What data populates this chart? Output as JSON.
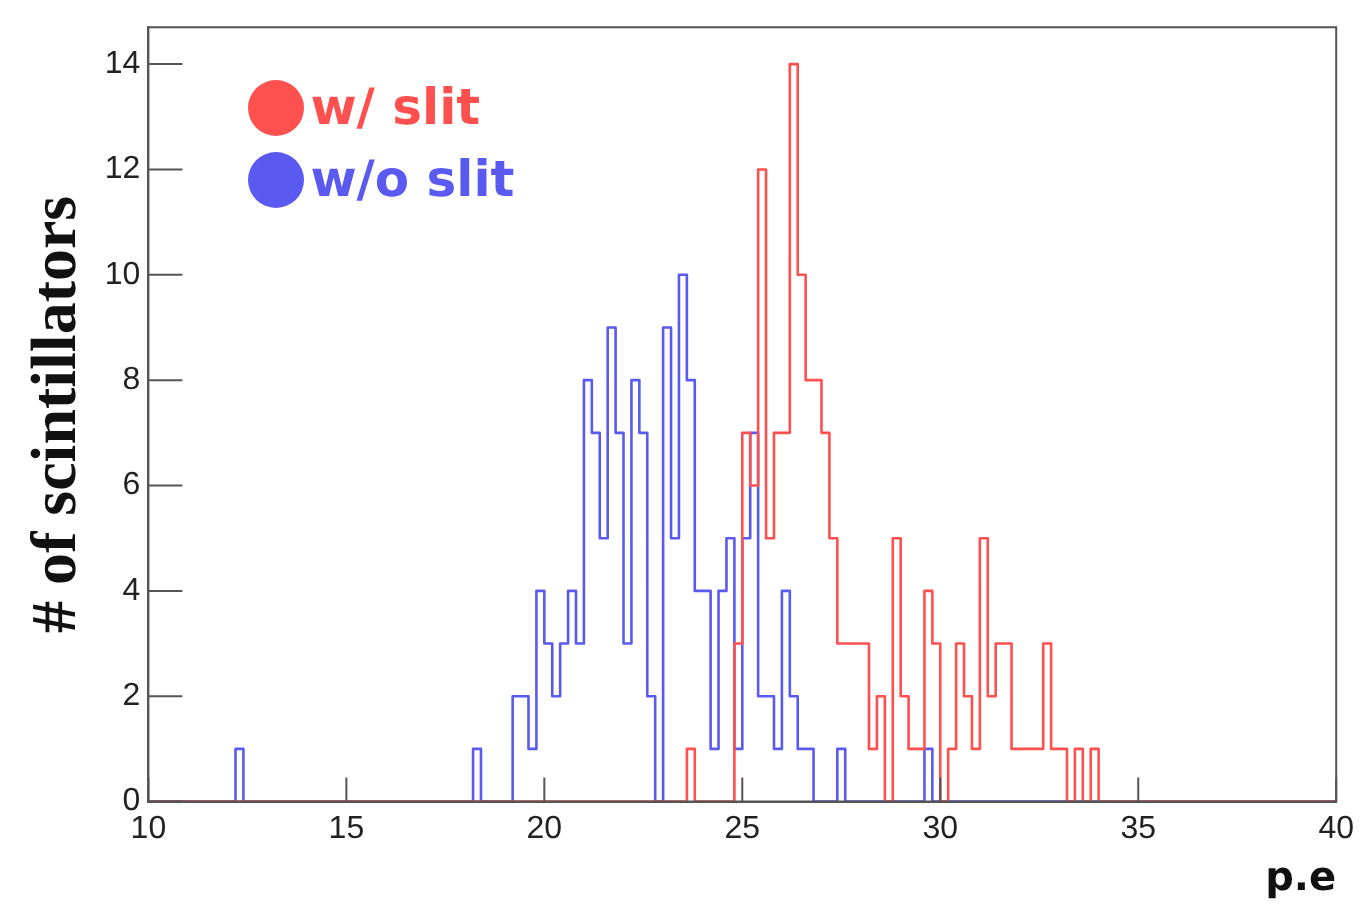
{
  "chart_data": {
    "type": "histogram",
    "xlabel": "p.e",
    "ylabel": "# of scintillators",
    "bins": [
      10,
      10.2,
      10.4,
      10.6,
      10.8,
      11,
      11.2,
      11.4,
      11.6,
      11.8,
      12,
      12.2,
      12.4,
      12.6,
      12.8,
      13,
      13.2,
      13.4,
      13.6,
      13.8,
      14,
      14.2,
      14.4,
      14.6,
      14.8,
      15,
      15.2,
      15.4,
      15.6,
      15.8,
      16,
      16.2,
      16.4,
      16.6,
      16.8,
      17,
      17.2,
      17.4,
      17.6,
      17.8,
      18,
      18.2,
      18.4,
      18.6,
      18.8,
      19,
      19.2,
      19.4,
      19.6,
      19.8,
      20,
      20.2,
      20.4,
      20.6,
      20.8,
      21,
      21.2,
      21.4,
      21.6,
      21.8,
      22,
      22.2,
      22.4,
      22.6,
      22.8,
      23,
      23.2,
      23.4,
      23.6,
      23.8,
      24,
      24.2,
      24.4,
      24.6,
      24.8,
      25,
      25.2,
      25.4,
      25.6,
      25.8,
      26,
      26.2,
      26.4,
      26.6,
      26.8,
      27,
      27.2,
      27.4,
      27.6,
      27.8,
      28,
      28.2,
      28.4,
      28.6,
      28.8,
      29,
      29.2,
      29.4,
      29.6,
      29.8,
      30,
      30.2,
      30.4,
      30.6,
      30.8,
      31,
      31.2,
      31.4,
      31.6,
      31.8,
      32,
      32.2,
      32.4,
      32.6,
      32.8,
      33,
      33.2,
      33.4,
      33.6,
      33.8,
      34,
      34.2,
      34.4,
      34.6,
      34.8,
      35,
      35.2,
      35.4,
      35.6,
      35.8,
      36,
      36.2,
      36.4,
      36.6,
      36.8,
      37,
      37.2,
      37.4,
      37.6,
      37.8,
      38,
      38.2,
      38.4,
      38.6,
      38.8,
      39,
      39.2,
      39.4,
      39.6,
      39.8,
      40
    ],
    "series": [
      {
        "name": "w/ slit",
        "color": "#ff5050",
        "values": [
          0,
          0,
          0,
          0,
          0,
          0,
          0,
          0,
          0,
          0,
          0,
          0,
          0,
          0,
          0,
          0,
          0,
          0,
          0,
          0,
          0,
          0,
          0,
          0,
          0,
          0,
          0,
          0,
          0,
          0,
          0,
          0,
          0,
          0,
          0,
          0,
          0,
          0,
          0,
          0,
          0,
          0,
          0,
          0,
          0,
          0,
          0,
          0,
          0,
          0,
          0,
          0,
          0,
          0,
          0,
          0,
          0,
          0,
          0,
          0,
          0,
          0,
          0,
          0,
          0,
          0,
          0,
          0,
          1,
          0,
          0,
          0,
          0,
          0,
          3,
          7,
          6,
          12,
          5,
          7,
          7,
          14,
          10,
          8,
          8,
          7,
          5,
          3,
          3,
          3,
          3,
          1,
          2,
          0,
          5,
          2,
          1,
          1,
          4,
          3,
          0,
          1,
          3,
          2,
          1,
          5,
          2,
          3,
          3,
          1,
          1,
          1,
          1,
          3,
          1,
          1,
          0,
          1,
          0,
          1,
          0,
          0,
          0,
          0,
          0,
          0,
          0,
          0,
          0,
          0,
          0,
          0,
          0,
          0,
          0,
          0,
          0,
          0,
          0,
          0,
          0,
          0,
          0,
          0,
          0,
          0,
          0,
          0,
          0,
          0
        ]
      },
      {
        "name": "w/o slit",
        "color": "#5a5af0",
        "values": [
          0,
          0,
          0,
          0,
          0,
          0,
          0,
          0,
          0,
          0,
          0,
          1,
          0,
          0,
          0,
          0,
          0,
          0,
          0,
          0,
          0,
          0,
          0,
          0,
          0,
          0,
          0,
          0,
          0,
          0,
          0,
          0,
          0,
          0,
          0,
          0,
          0,
          0,
          0,
          0,
          0,
          1,
          0,
          0,
          0,
          0,
          2,
          2,
          1,
          4,
          3,
          2,
          3,
          4,
          3,
          8,
          7,
          5,
          9,
          7,
          3,
          8,
          7,
          2,
          0,
          9,
          5,
          10,
          8,
          4,
          4,
          1,
          4,
          5,
          1,
          5,
          7,
          2,
          2,
          1,
          4,
          2,
          1,
          1,
          0,
          0,
          0,
          1,
          0,
          0,
          0,
          0,
          0,
          0,
          0,
          0,
          0,
          0,
          1,
          0,
          0,
          0,
          0,
          0,
          0,
          0,
          0,
          0,
          0,
          0,
          0,
          0,
          0,
          0,
          0,
          0,
          0,
          0,
          0,
          0,
          0,
          0,
          0,
          0,
          0,
          0,
          0,
          0,
          0,
          0,
          0,
          0,
          0,
          0,
          0,
          0,
          0,
          0,
          0,
          0,
          0,
          0,
          0,
          0,
          0,
          0,
          0,
          0,
          0,
          0
        ]
      }
    ],
    "xlim": [
      10,
      40
    ],
    "xticks": [
      10,
      15,
      20,
      25,
      30,
      35,
      40
    ],
    "ylim": [
      0,
      14.7
    ],
    "yticks": [
      0,
      2,
      4,
      6,
      8,
      10,
      12,
      14
    ],
    "legend": "top left",
    "grid": false
  }
}
